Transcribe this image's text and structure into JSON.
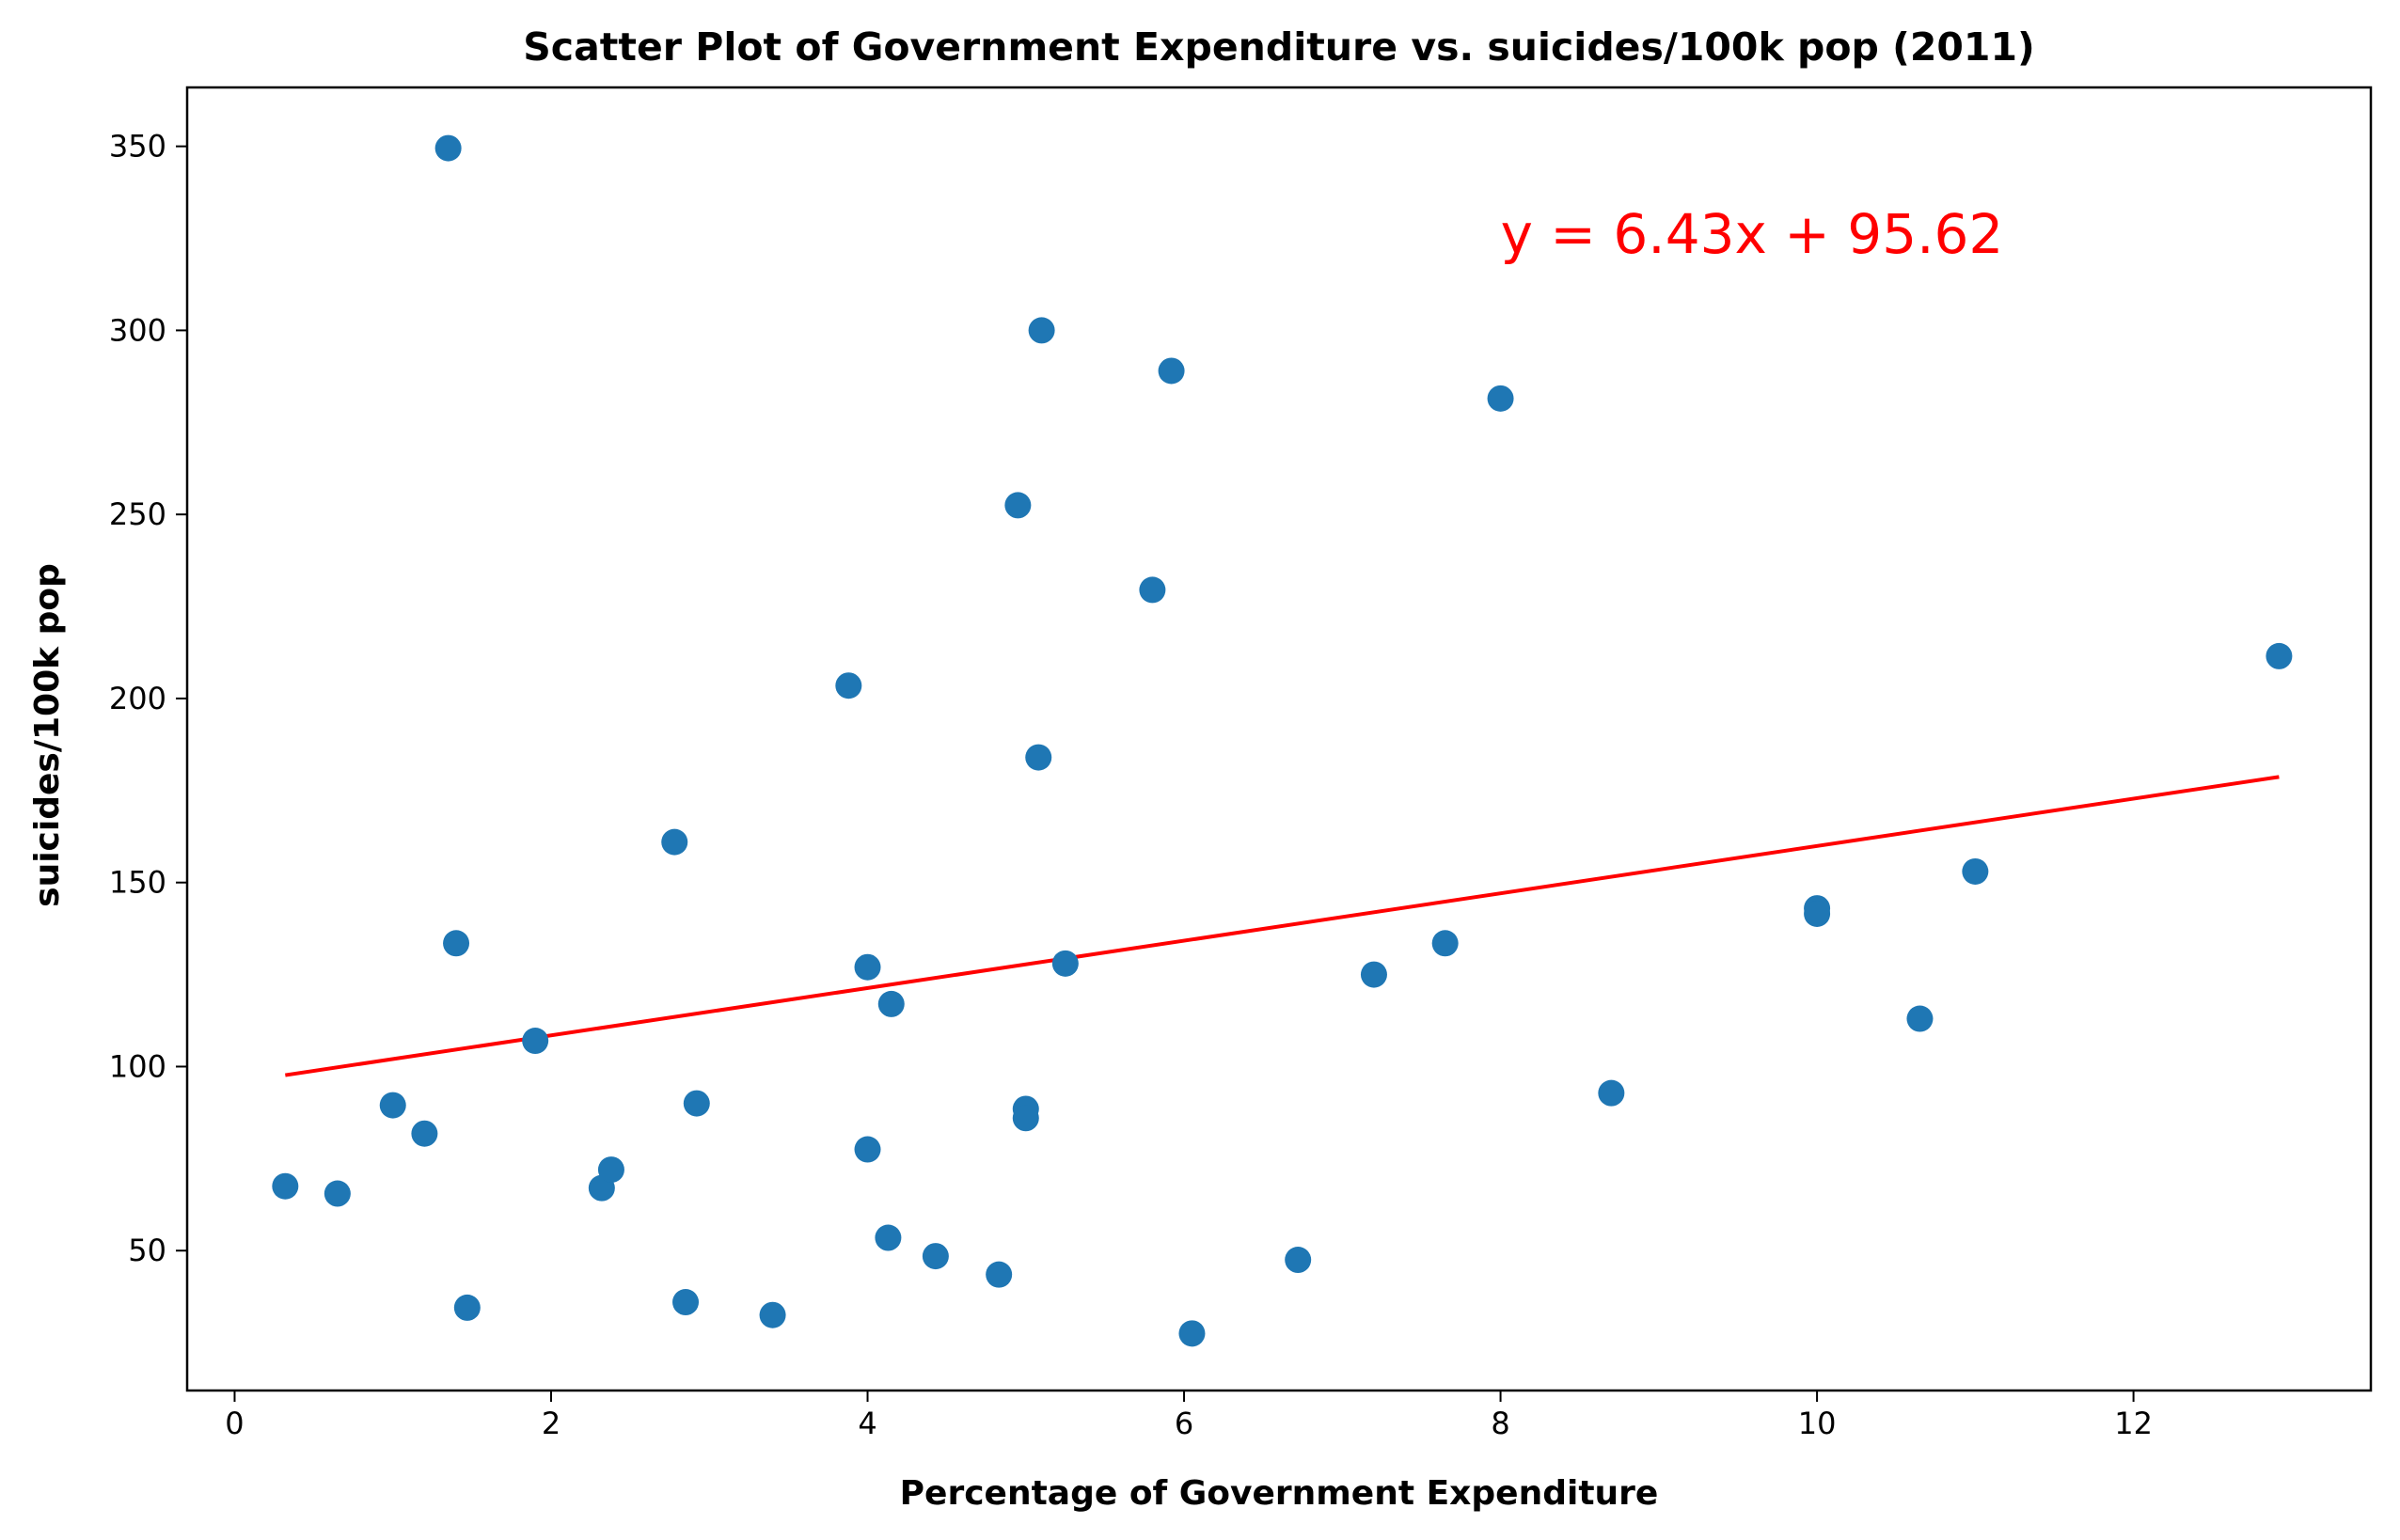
{
  "chart_data": {
    "type": "scatter",
    "title": "Scatter Plot of Government Expenditure vs. suicides/100k pop (2011)",
    "xlabel": "Percentage of Government Expenditure",
    "ylabel": "suicides/100k pop",
    "xlim": [
      -0.3,
      13.5
    ],
    "ylim": [
      12,
      366
    ],
    "xticks": [
      0,
      2,
      4,
      6,
      8,
      10,
      12
    ],
    "yticks": [
      50,
      100,
      150,
      200,
      250,
      300,
      350
    ],
    "grid": false,
    "legend": "none",
    "series": [
      {
        "color": "#1f77b4",
        "marker": "circle",
        "points": [
          [
            0.32,
            67.5
          ],
          [
            0.65,
            65.5
          ],
          [
            1.0,
            89.5
          ],
          [
            1.2,
            81.8
          ],
          [
            1.35,
            349.5
          ],
          [
            1.4,
            133.5
          ],
          [
            1.47,
            34.5
          ],
          [
            1.9,
            107.0
          ],
          [
            2.32,
            67.0
          ],
          [
            2.38,
            72.0
          ],
          [
            2.78,
            161.0
          ],
          [
            2.85,
            36.0
          ],
          [
            2.92,
            90.0
          ],
          [
            3.4,
            32.5
          ],
          [
            3.88,
            203.5
          ],
          [
            4.0,
            127.0
          ],
          [
            4.0,
            77.5
          ],
          [
            4.13,
            53.5
          ],
          [
            4.15,
            117.0
          ],
          [
            4.43,
            48.5
          ],
          [
            4.83,
            43.5
          ],
          [
            4.95,
            252.5
          ],
          [
            5.0,
            88.5
          ],
          [
            5.0,
            86.0
          ],
          [
            5.08,
            184.0
          ],
          [
            5.1,
            300.0
          ],
          [
            5.25,
            128.0
          ],
          [
            5.8,
            229.5
          ],
          [
            5.92,
            289.0
          ],
          [
            6.05,
            27.5
          ],
          [
            6.72,
            47.5
          ],
          [
            7.2,
            125.0
          ],
          [
            7.65,
            133.5
          ],
          [
            8.0,
            281.5
          ],
          [
            8.7,
            92.8
          ],
          [
            10.0,
            143.0
          ],
          [
            10.0,
            141.5
          ],
          [
            10.65,
            113.0
          ],
          [
            11.0,
            153.0
          ],
          [
            12.92,
            211.5
          ]
        ]
      }
    ],
    "regression": {
      "slope": 6.43,
      "intercept": 95.62,
      "x_range": [
        0.32,
        12.92
      ],
      "color": "#ff0000",
      "label": "y = 6.43x + 95.62",
      "label_anchor": [
        8.0,
        321
      ]
    }
  }
}
